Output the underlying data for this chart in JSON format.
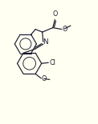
{
  "bg_color": "#fffff2",
  "line_color": "#1a1a2e",
  "line_width": 0.85,
  "font_size": 5.8,
  "figsize": [
    1.22,
    1.55
  ],
  "dpi": 100,
  "xlim": [
    -1,
    11
  ],
  "ylim": [
    -0.5,
    11
  ]
}
